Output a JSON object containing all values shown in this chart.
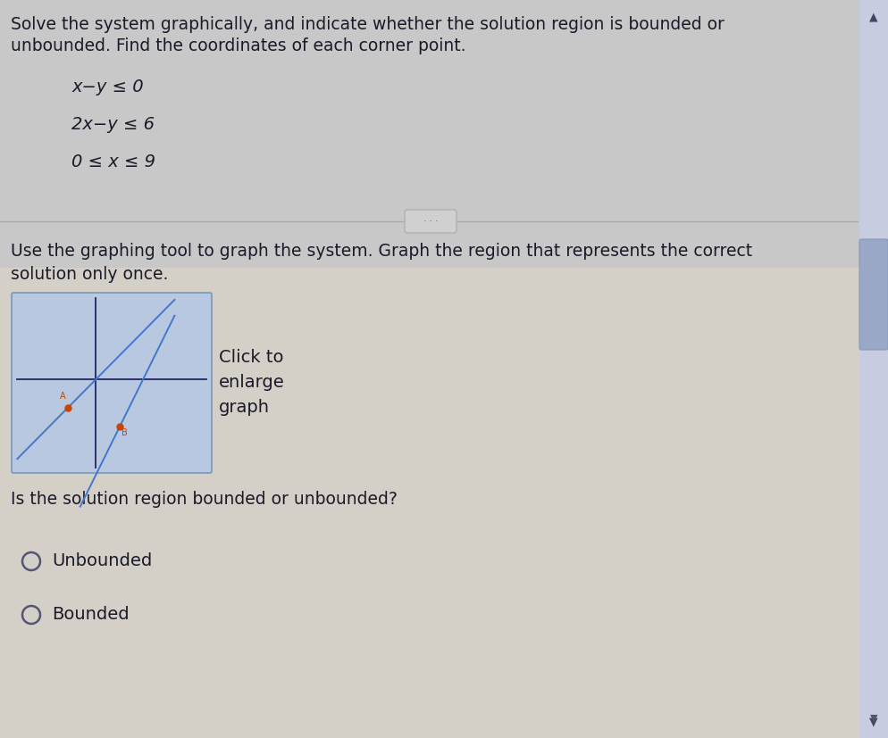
{
  "bg_color_top": "#c0c0c0",
  "bg_color_bottom": "#d8d4cc",
  "text_color": "#1a1a2a",
  "title_text1": "Solve the system graphically, and indicate whether the solution region is bounded or",
  "title_text2": "unbounded. Find the coordinates of each corner point.",
  "inequalities": [
    "x−y ≤ 0",
    "2x−y ≤ 6",
    "0 ≤ x ≤ 9"
  ],
  "instruction_text1": "Use the graphing tool to graph the system. Graph the region that represents the correct",
  "instruction_text2": "solution only once.",
  "graph_box_text": "Click to\nenlarge\ngraph",
  "question_text": "Is the solution region bounded or unbounded?",
  "options": [
    "Unbounded",
    "Bounded"
  ],
  "graph_bg": "#b8c8e0",
  "graph_line_color": "#4477cc",
  "graph_point_color": "#cc4400",
  "graph_axis_color": "#222266",
  "scrollbar_thumb": "#9aa8c8",
  "scrollbar_bg": "#c8cce0",
  "divider_color": "#aaaaaa",
  "btn_color": "#d0d0d0",
  "btn_edge": "#aaaaaa"
}
